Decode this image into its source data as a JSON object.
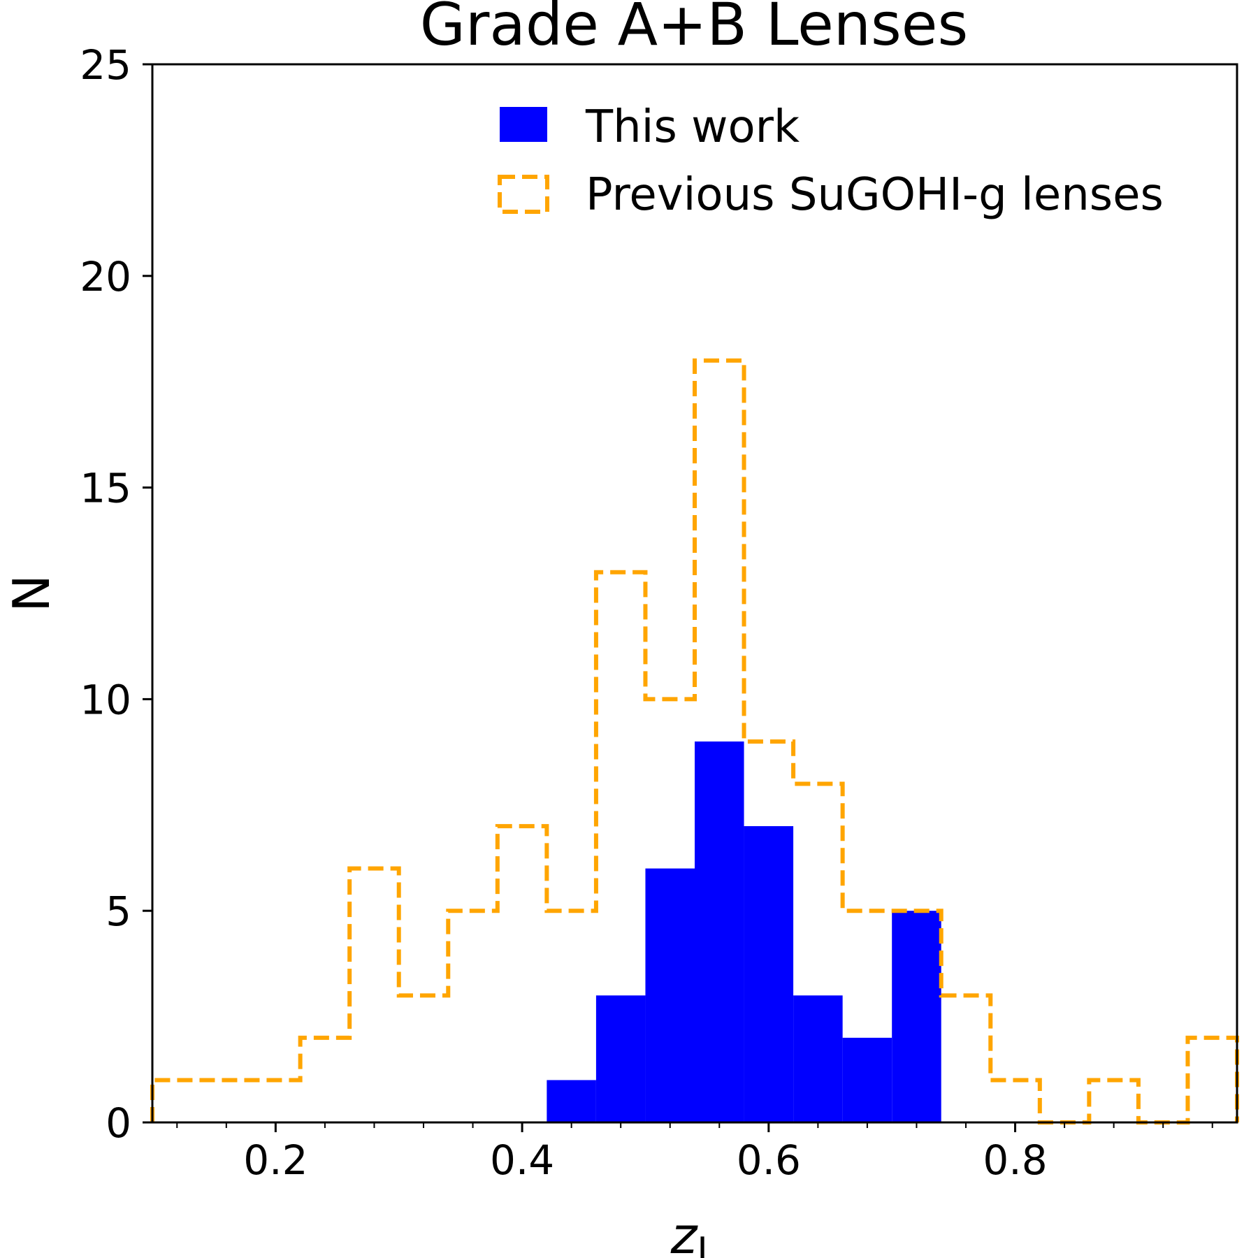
{
  "chart_data": {
    "type": "histogram",
    "title": "Grade A+B Lenses",
    "xlabel": "z",
    "xlabel_subscript": "L",
    "ylabel": "N",
    "xlim": [
      0.1,
      0.98
    ],
    "ylim": [
      0,
      25
    ],
    "x_ticks": [
      "0.2",
      "0.4",
      "0.6",
      "0.8"
    ],
    "y_ticks": [
      "0",
      "5",
      "10",
      "15",
      "20",
      "25"
    ],
    "legend_position": "upper-right",
    "series": [
      {
        "name": "This work",
        "style": "filled",
        "color": "#0000ff",
        "bin_edges": [
          0.42,
          0.46,
          0.5,
          0.54,
          0.58,
          0.62,
          0.66,
          0.7,
          0.74
        ],
        "counts": [
          1,
          3,
          6,
          9,
          7,
          3,
          2,
          5
        ]
      },
      {
        "name": "Previous SuGOHI-g lenses",
        "style": "step-dashed",
        "color": "#ffa500",
        "bin_edges": [
          0.1,
          0.14,
          0.18,
          0.22,
          0.26,
          0.3,
          0.34,
          0.38,
          0.42,
          0.46,
          0.5,
          0.54,
          0.58,
          0.62,
          0.66,
          0.7,
          0.74,
          0.78,
          0.82,
          0.86,
          0.9,
          0.94,
          0.98
        ],
        "counts": [
          1,
          1,
          1,
          2,
          6,
          3,
          5,
          7,
          5,
          13,
          10,
          18,
          9,
          8,
          5,
          5,
          3,
          1,
          0,
          1,
          0,
          2
        ]
      }
    ]
  }
}
